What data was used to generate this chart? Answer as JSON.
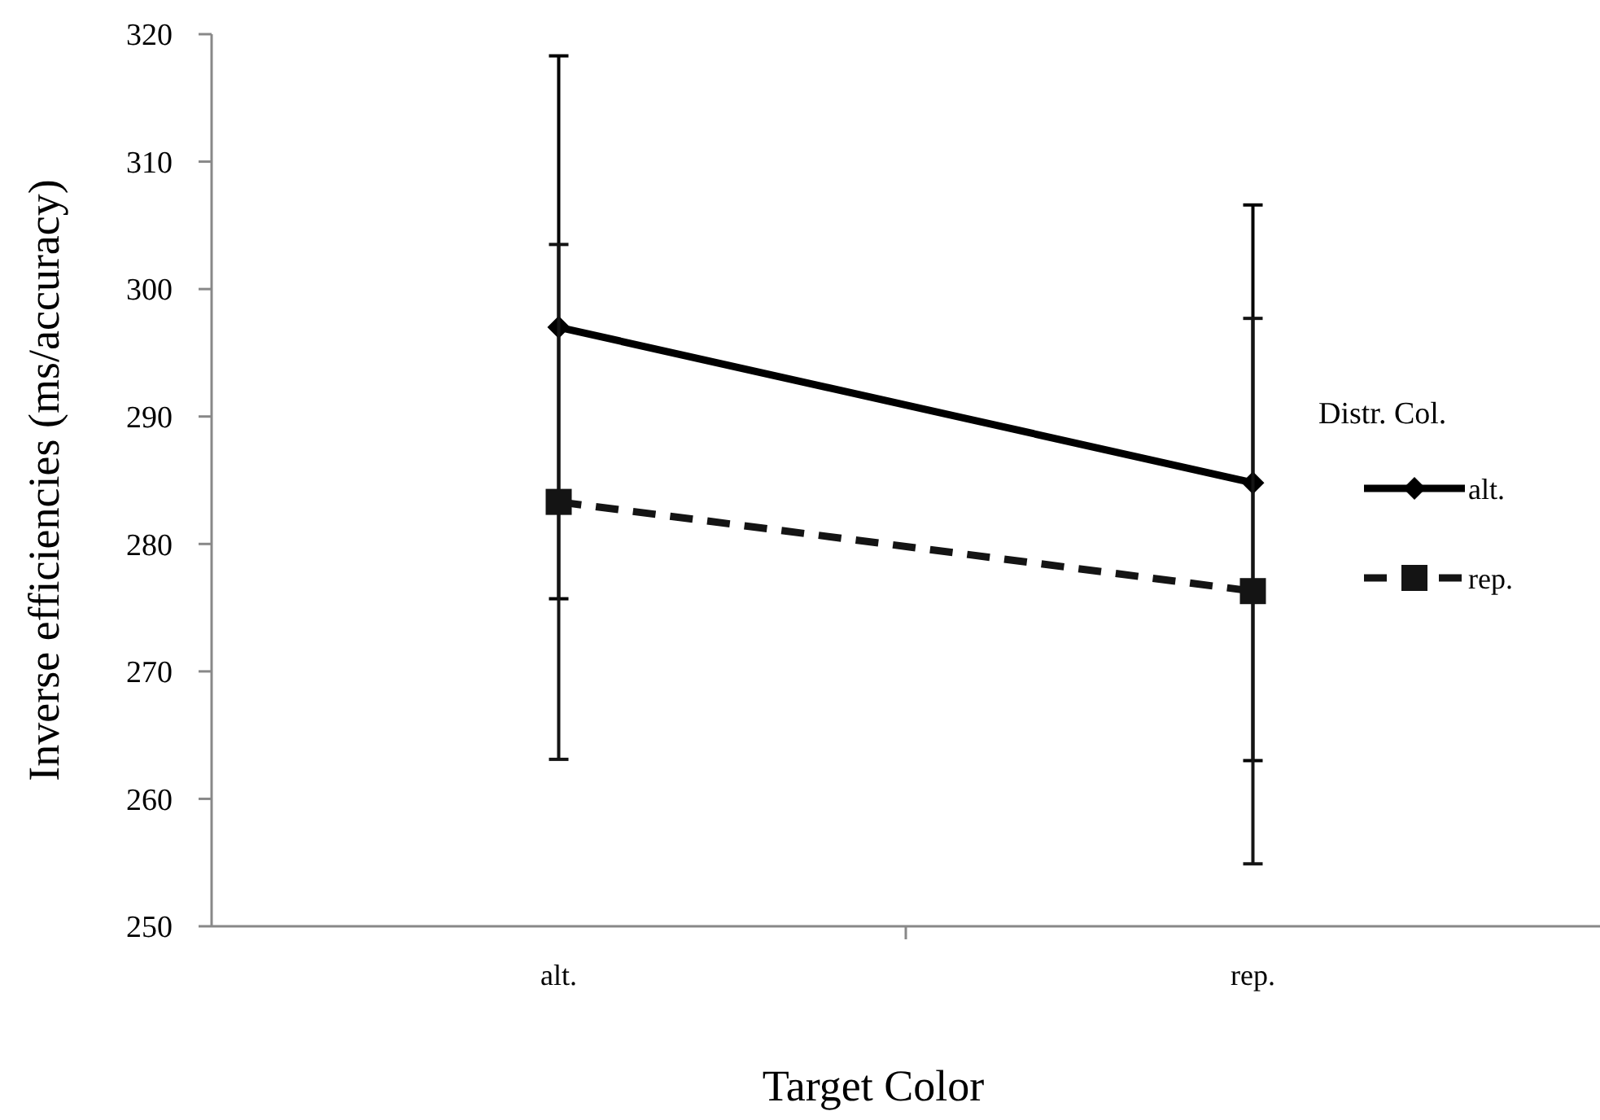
{
  "chart_data": {
    "type": "line",
    "xlabel": "Target Color",
    "ylabel": "Inverse efficiencies (ms/accuracy)",
    "legend_title": "Distr. Col.",
    "categories": [
      "alt.",
      "rep."
    ],
    "series": [
      {
        "name": "alt.",
        "color": "#000000",
        "values": [
          297.0,
          284.8
        ],
        "errors": [
          21.3,
          21.8
        ],
        "marker": "diamond",
        "line_style": "solid"
      },
      {
        "name": "rep.",
        "color": "#141414",
        "values": [
          283.3,
          276.3
        ],
        "errors": [
          20.2,
          21.4
        ],
        "marker": "square",
        "line_style": "dashed"
      }
    ],
    "ylim": [
      250,
      320
    ],
    "yticks": [
      250,
      260,
      270,
      280,
      290,
      300,
      310,
      320
    ],
    "grid": false,
    "legend": "right"
  }
}
